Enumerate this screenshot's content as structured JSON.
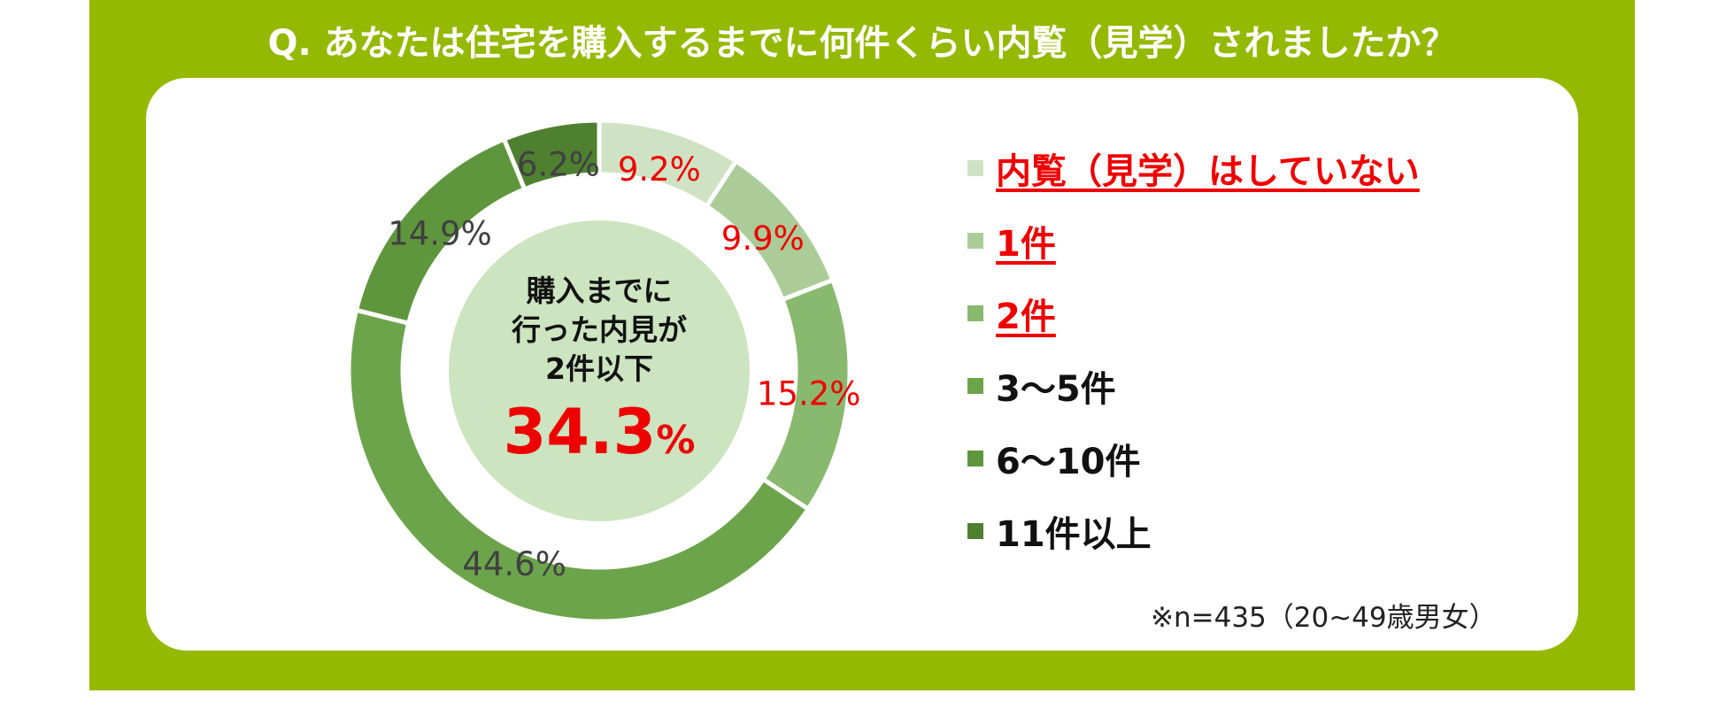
{
  "question": "Q. あなたは住宅を購入するまでに何件くらい内覧（見学）されましたか？",
  "center": {
    "line1": "購入までに",
    "line2": "行った内見が",
    "line3": "2件以下",
    "value": "34.3",
    "unit": "%"
  },
  "note": "※n=435（20~49歳男女）",
  "colors": {
    "background_band": "#95b800",
    "center_circle": "#cce4bf",
    "highlight_text": "#ee0000",
    "label_text": "#404040"
  },
  "chart_data": {
    "type": "pie",
    "donut": true,
    "start": "top",
    "direction": "clockwise",
    "categories": [
      "内覧（見学）はしていない",
      "1件",
      "2件",
      "3～5件",
      "6～10件",
      "11件以上"
    ],
    "values": [
      9.2,
      9.9,
      15.2,
      44.6,
      14.9,
      6.2
    ],
    "labels": [
      "9.2%",
      "9.9%",
      "15.2%",
      "44.6%",
      "14.9%",
      "6.2%"
    ],
    "colors": [
      "#cfe3c4",
      "#abcc98",
      "#89b86f",
      "#6ca44b",
      "#5f963d",
      "#4e8030"
    ],
    "highlighted": [
      true,
      true,
      true,
      false,
      false,
      false
    ]
  }
}
